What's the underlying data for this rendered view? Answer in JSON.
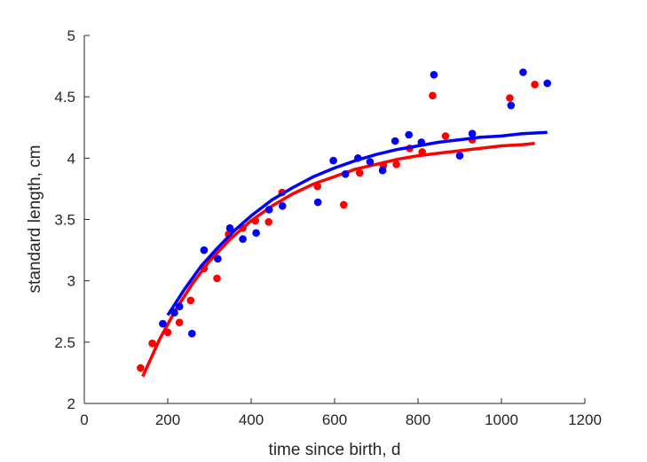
{
  "chart_data": {
    "type": "scatter",
    "title": "",
    "xlabel": "time since birth, d",
    "ylabel": "standard length, cm",
    "xlim": [
      0,
      1200
    ],
    "ylim": [
      2,
      5
    ],
    "xticks": [
      0,
      200,
      400,
      600,
      800,
      1000,
      1200
    ],
    "yticks": [
      2,
      2.5,
      3,
      3.5,
      4,
      4.5,
      5
    ],
    "ytick_labels": [
      "2",
      "2.5",
      "3",
      "3.5",
      "4",
      "4.5",
      "5"
    ],
    "grid": false,
    "legend": null,
    "series": [
      {
        "color": "#ff0000",
        "marker": "dot",
        "points": [
          [
            135,
            2.29
          ],
          [
            163,
            2.49
          ],
          [
            200,
            2.58
          ],
          [
            228,
            2.66
          ],
          [
            255,
            2.84
          ],
          [
            287,
            3.1
          ],
          [
            318,
            3.02
          ],
          [
            346,
            3.38
          ],
          [
            380,
            3.43
          ],
          [
            410,
            3.49
          ],
          [
            442,
            3.48
          ],
          [
            474,
            3.72
          ],
          [
            559,
            3.77
          ],
          [
            622,
            3.62
          ],
          [
            660,
            3.88
          ],
          [
            717,
            3.94
          ],
          [
            748,
            3.95
          ],
          [
            780,
            4.08
          ],
          [
            810,
            4.05
          ],
          [
            835,
            4.51
          ],
          [
            866,
            4.18
          ],
          [
            930,
            4.15
          ],
          [
            1020,
            4.49
          ],
          [
            1080,
            4.6
          ]
        ],
        "fit": [
          [
            140,
            2.22
          ],
          [
            180,
            2.52
          ],
          [
            220,
            2.77
          ],
          [
            260,
            2.98
          ],
          [
            300,
            3.16
          ],
          [
            350,
            3.34
          ],
          [
            400,
            3.49
          ],
          [
            450,
            3.61
          ],
          [
            500,
            3.71
          ],
          [
            550,
            3.79
          ],
          [
            600,
            3.85
          ],
          [
            650,
            3.91
          ],
          [
            700,
            3.95
          ],
          [
            750,
            3.99
          ],
          [
            800,
            4.02
          ],
          [
            850,
            4.04
          ],
          [
            900,
            4.06
          ],
          [
            950,
            4.08
          ],
          [
            1000,
            4.1
          ],
          [
            1050,
            4.11
          ],
          [
            1080,
            4.12
          ]
        ]
      },
      {
        "color": "#0000ff",
        "marker": "dot",
        "points": [
          [
            188,
            2.65
          ],
          [
            216,
            2.74
          ],
          [
            228,
            2.79
          ],
          [
            258,
            2.57
          ],
          [
            287,
            3.25
          ],
          [
            320,
            3.18
          ],
          [
            349,
            3.43
          ],
          [
            380,
            3.34
          ],
          [
            412,
            3.39
          ],
          [
            443,
            3.58
          ],
          [
            475,
            3.61
          ],
          [
            560,
            3.64
          ],
          [
            597,
            3.98
          ],
          [
            626,
            3.87
          ],
          [
            656,
            4.0
          ],
          [
            685,
            3.97
          ],
          [
            715,
            3.9
          ],
          [
            745,
            4.14
          ],
          [
            778,
            4.19
          ],
          [
            808,
            4.13
          ],
          [
            838,
            4.68
          ],
          [
            900,
            4.02
          ],
          [
            930,
            4.2
          ],
          [
            1023,
            4.43
          ],
          [
            1052,
            4.7
          ],
          [
            1110,
            4.61
          ]
        ],
        "fit": [
          [
            200,
            2.72
          ],
          [
            240,
            2.93
          ],
          [
            280,
            3.12
          ],
          [
            320,
            3.27
          ],
          [
            360,
            3.41
          ],
          [
            400,
            3.53
          ],
          [
            450,
            3.66
          ],
          [
            500,
            3.76
          ],
          [
            550,
            3.85
          ],
          [
            600,
            3.92
          ],
          [
            650,
            3.98
          ],
          [
            700,
            4.03
          ],
          [
            750,
            4.07
          ],
          [
            800,
            4.1
          ],
          [
            850,
            4.13
          ],
          [
            900,
            4.15
          ],
          [
            950,
            4.17
          ],
          [
            1000,
            4.18
          ],
          [
            1050,
            4.2
          ],
          [
            1110,
            4.21
          ]
        ]
      }
    ]
  }
}
